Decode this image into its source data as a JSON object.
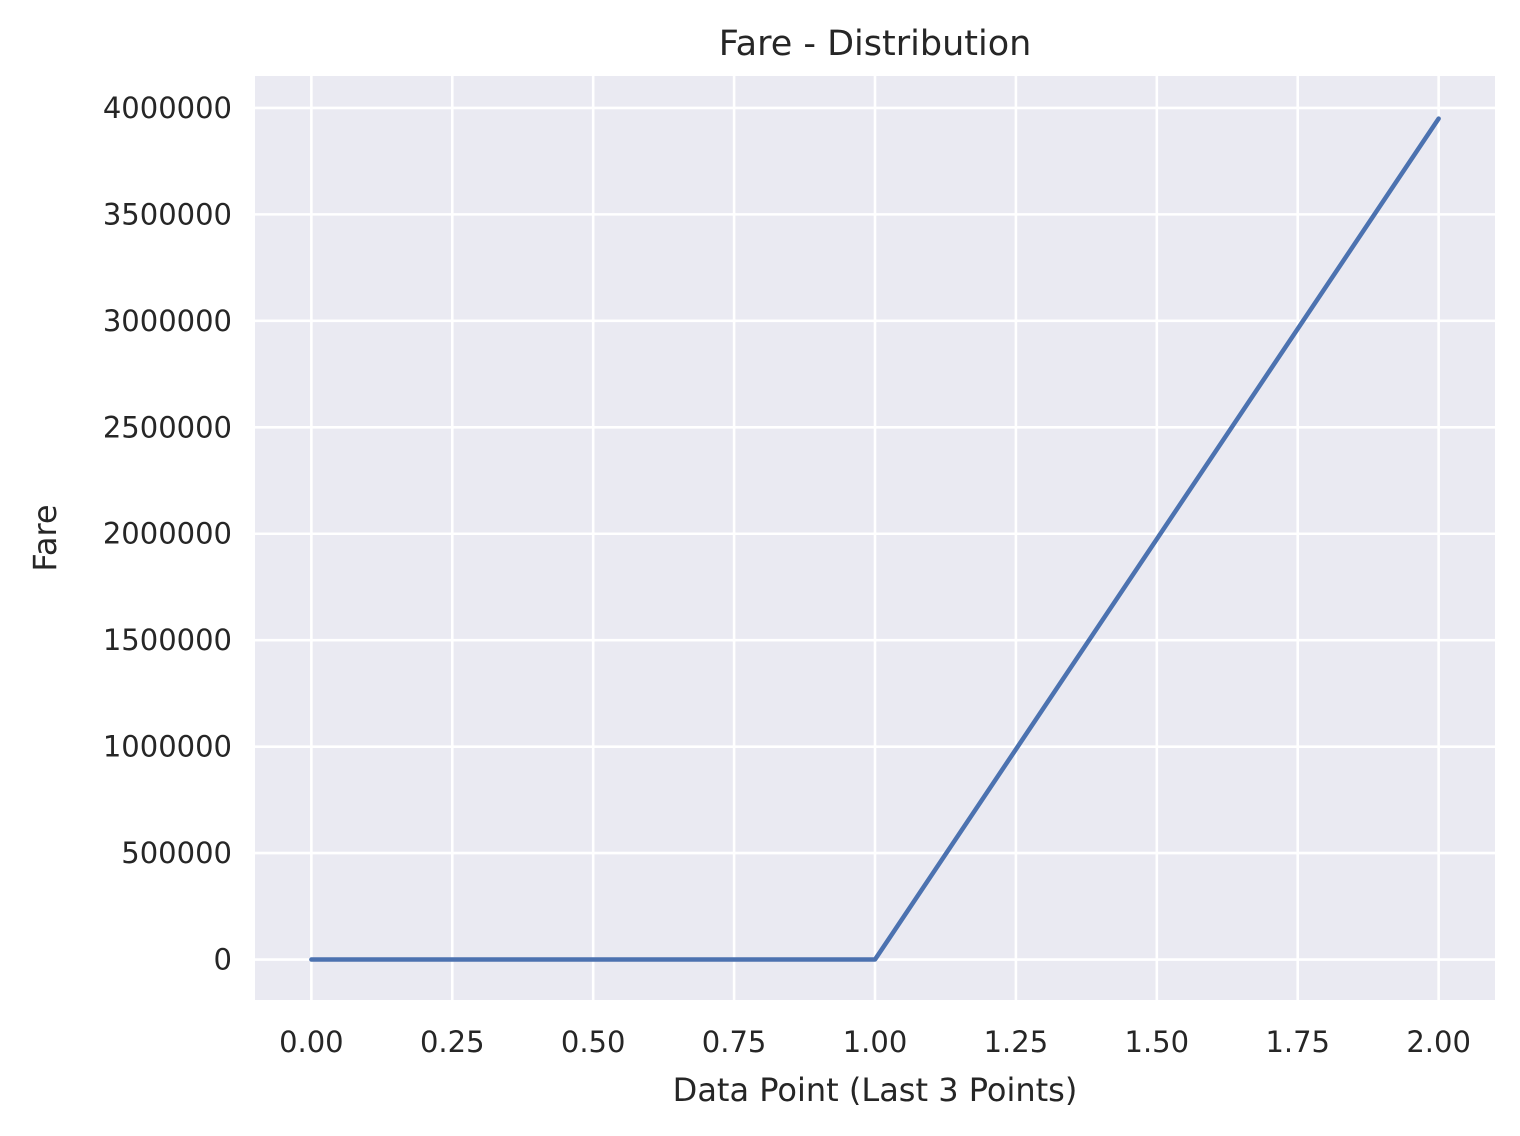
{
  "chart_data": {
    "type": "line",
    "title": "Fare - Distribution",
    "xlabel": "Data Point (Last 3 Points)",
    "ylabel": "Fare",
    "x": [
      0,
      1,
      2
    ],
    "series": [
      {
        "values": [
          0,
          0,
          3950000
        ]
      }
    ],
    "xlim": [
      -0.1,
      2.1
    ],
    "ylim": [
      -190000,
      4150000
    ],
    "xticks": [
      0,
      0.25,
      0.5,
      0.75,
      1,
      1.25,
      1.5,
      1.75,
      2
    ],
    "xtick_labels": [
      "0.00",
      "0.25",
      "0.50",
      "0.75",
      "1.00",
      "1.25",
      "1.50",
      "1.75",
      "2.00"
    ],
    "yticks": [
      0,
      500000,
      1000000,
      1500000,
      2000000,
      2500000,
      3000000,
      3500000,
      4000000
    ],
    "ytick_labels": [
      "0",
      "500000",
      "1000000",
      "1500000",
      "2000000",
      "2500000",
      "3000000",
      "3500000",
      "4000000"
    ],
    "grid": true,
    "colors": {
      "plot_background": "#eaeaf2",
      "grid": "#ffffff",
      "line": "#4c72b0",
      "text": "#262626"
    }
  }
}
